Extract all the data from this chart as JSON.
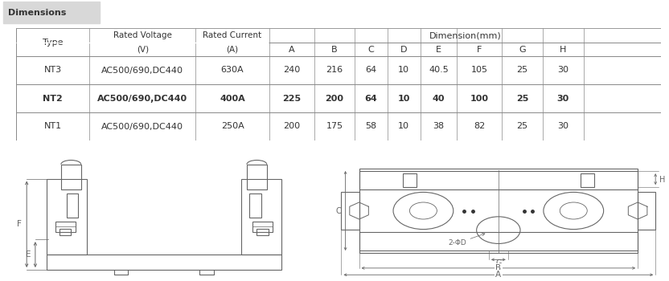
{
  "title": "Dimensions",
  "col_headers_1": [
    "Type",
    "Rated Voltage\n(V)",
    "Rated Current\n(A)",
    "Dimension(mm)"
  ],
  "col_headers_2": [
    "A",
    "B",
    "C",
    "D",
    "E",
    "F",
    "G",
    "H"
  ],
  "table_data": [
    [
      "NT1",
      "AC500/690,DC440",
      "250A",
      "200",
      "175",
      "58",
      "10",
      "38",
      "82",
      "25",
      "30"
    ],
    [
      "NT2",
      "AC500/690,DC440",
      "400A",
      "225",
      "200",
      "64",
      "10",
      "40",
      "100",
      "25",
      "30"
    ],
    [
      "NT3",
      "AC500/690,DC440",
      "630A",
      "240",
      "216",
      "64",
      "10",
      "40.5",
      "105",
      "25",
      "30"
    ]
  ],
  "bold_row": 1,
  "bg_color": "#ffffff",
  "line_color": "#888888",
  "text_color": "#333333",
  "title_bg": "#d8d8d8",
  "draw_color": "#666666"
}
